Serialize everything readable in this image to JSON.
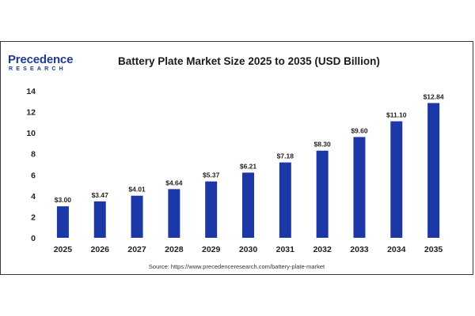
{
  "brand": {
    "name": "Precedence",
    "tagline": "RESEARCH"
  },
  "chart_data": {
    "type": "bar",
    "title": "Battery Plate Market Size 2025 to 2035 (USD Billion)",
    "categories": [
      "2025",
      "2026",
      "2027",
      "2028",
      "2029",
      "2030",
      "2031",
      "2032",
      "2033",
      "2034",
      "2035"
    ],
    "values": [
      3.0,
      3.47,
      4.01,
      4.64,
      5.37,
      6.21,
      7.18,
      8.3,
      9.6,
      11.1,
      12.84
    ],
    "value_labels": [
      "$3.00",
      "$3.47",
      "$4.01",
      "$4.64",
      "$5.37",
      "$6.21",
      "$7.18",
      "$8.30",
      "$9.60",
      "$11.10",
      "$12.84"
    ],
    "xlabel": "",
    "ylabel": "",
    "ylim": [
      0,
      14
    ],
    "yticks": [
      0,
      2,
      4,
      6,
      8,
      10,
      12,
      14
    ],
    "grid": false,
    "legend": "none",
    "bar_color": "#1c37a6"
  },
  "source": "Source: https://www.precedenceresearch.com/battery-plate-market"
}
